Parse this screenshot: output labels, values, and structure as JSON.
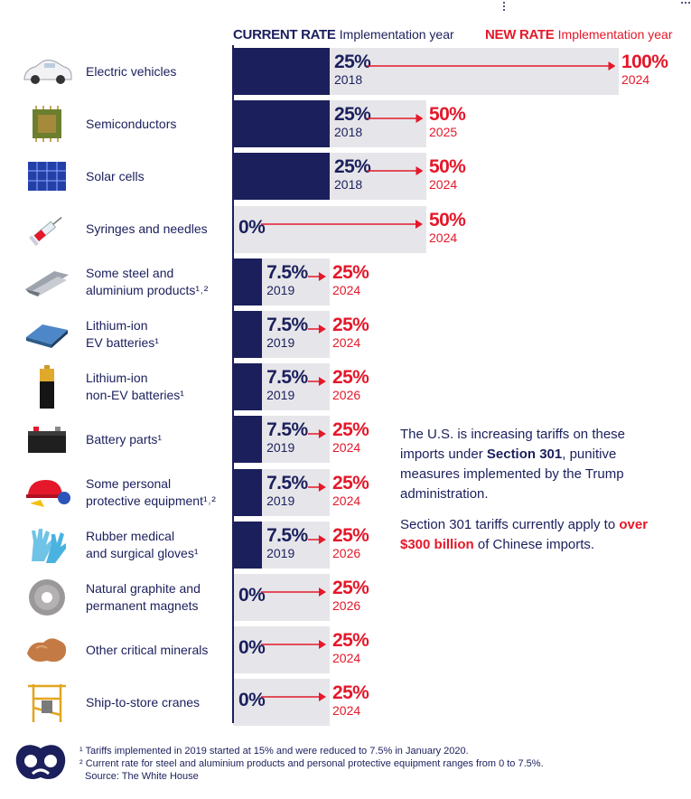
{
  "header": {
    "current_label": "CURRENT RATE",
    "current_sub": "Implementation year",
    "new_label": "NEW RATE",
    "new_sub": "Implementation year"
  },
  "chart_data": {
    "type": "bar",
    "categories": [
      "Electric vehicles",
      "Semiconductors",
      "Solar cells",
      "Syringes and needles",
      "Some steel and aluminium products",
      "Lithium-ion EV batteries",
      "Lithium-ion non-EV batteries",
      "Battery parts",
      "Some personal protective equipment",
      "Rubber medical and surgical gloves",
      "Natural graphite and permanent magnets",
      "Other critical minerals",
      "Ship-to-store cranes"
    ],
    "series": [
      {
        "name": "CURRENT RATE",
        "values": [
          25,
          25,
          25,
          0,
          7.5,
          7.5,
          7.5,
          7.5,
          7.5,
          7.5,
          0,
          0,
          0
        ]
      },
      {
        "name": "NEW RATE",
        "values": [
          100,
          50,
          50,
          50,
          25,
          25,
          25,
          25,
          25,
          25,
          25,
          25,
          25
        ]
      }
    ],
    "unit": "%",
    "xlim": [
      0,
      100
    ]
  },
  "rows": [
    {
      "icon": "electric-car-icon",
      "label": "Electric vehicles",
      "current": "25%",
      "current_year": "2018",
      "new": "100%",
      "new_year": "2024",
      "cur_val": 25,
      "new_val": 100
    },
    {
      "icon": "chip-icon",
      "label": "Semiconductors",
      "current": "25%",
      "current_year": "2018",
      "new": "50%",
      "new_year": "2025",
      "cur_val": 25,
      "new_val": 50
    },
    {
      "icon": "solar-panel-icon",
      "label": "Solar cells",
      "current": "25%",
      "current_year": "2018",
      "new": "50%",
      "new_year": "2024",
      "cur_val": 25,
      "new_val": 50
    },
    {
      "icon": "syringe-icon",
      "label": "Syringes and needles",
      "current": "0%",
      "current_year": "",
      "new": "50%",
      "new_year": "2024",
      "cur_val": 0,
      "new_val": 50
    },
    {
      "icon": "steel-beams-icon",
      "label": "Some steel and\naluminium products¹˒²",
      "current": "7.5%",
      "current_year": "2019",
      "new": "25%",
      "new_year": "2024",
      "cur_val": 7.5,
      "new_val": 25
    },
    {
      "icon": "ev-battery-icon",
      "label": "Lithium-ion\nEV batteries¹",
      "current": "7.5%",
      "current_year": "2019",
      "new": "25%",
      "new_year": "2024",
      "cur_val": 7.5,
      "new_val": 25
    },
    {
      "icon": "aa-battery-icon",
      "label": "Lithium-ion\nnon-EV batteries¹",
      "current": "7.5%",
      "current_year": "2019",
      "new": "25%",
      "new_year": "2026",
      "cur_val": 7.5,
      "new_val": 25
    },
    {
      "icon": "car-battery-icon",
      "label": "Battery parts¹",
      "current": "7.5%",
      "current_year": "2019",
      "new": "25%",
      "new_year": "2024",
      "cur_val": 7.5,
      "new_val": 25
    },
    {
      "icon": "hard-hat-icon",
      "label": "Some personal\nprotective equipment¹˒²",
      "current": "7.5%",
      "current_year": "2019",
      "new": "25%",
      "new_year": "2024",
      "cur_val": 7.5,
      "new_val": 25
    },
    {
      "icon": "gloves-icon",
      "label": "Rubber medical\nand surgical gloves¹",
      "current": "7.5%",
      "current_year": "2019",
      "new": "25%",
      "new_year": "2026",
      "cur_val": 7.5,
      "new_val": 25
    },
    {
      "icon": "magnet-ring-icon",
      "label": "Natural graphite and\npermanent magnets",
      "current": "0%",
      "current_year": "",
      "new": "25%",
      "new_year": "2026",
      "cur_val": 0,
      "new_val": 25
    },
    {
      "icon": "copper-nugget-icon",
      "label": "Other critical minerals",
      "current": "0%",
      "current_year": "",
      "new": "25%",
      "new_year": "2024",
      "cur_val": 0,
      "new_val": 25
    },
    {
      "icon": "crane-icon",
      "label": "Ship-to-store cranes",
      "current": "0%",
      "current_year": "",
      "new": "25%",
      "new_year": "2024",
      "cur_val": 0,
      "new_val": 25
    }
  ],
  "note": {
    "p1_a": "The U.S. is increasing tariffs on these imports under ",
    "p1_bold": "Section 301",
    "p1_b": ", punitive measures implemented by the Trump administration.",
    "p2_a": "Section 301 tariffs currently apply to ",
    "p2_red": "over $300 billion",
    "p2_b": " of Chinese imports."
  },
  "footnotes": {
    "f1": "¹ Tariffs implemented in 2019 started at 15% and were reduced to 7.5% in January 2020.",
    "f2": "² Current rate for steel and aluminium products and personal protective equipment ranges from 0 to 7.5%.",
    "source": "Source: The White House"
  },
  "colors": {
    "navy": "#1b1f5c",
    "red": "#e4182a",
    "track": "#e6e6ea"
  }
}
